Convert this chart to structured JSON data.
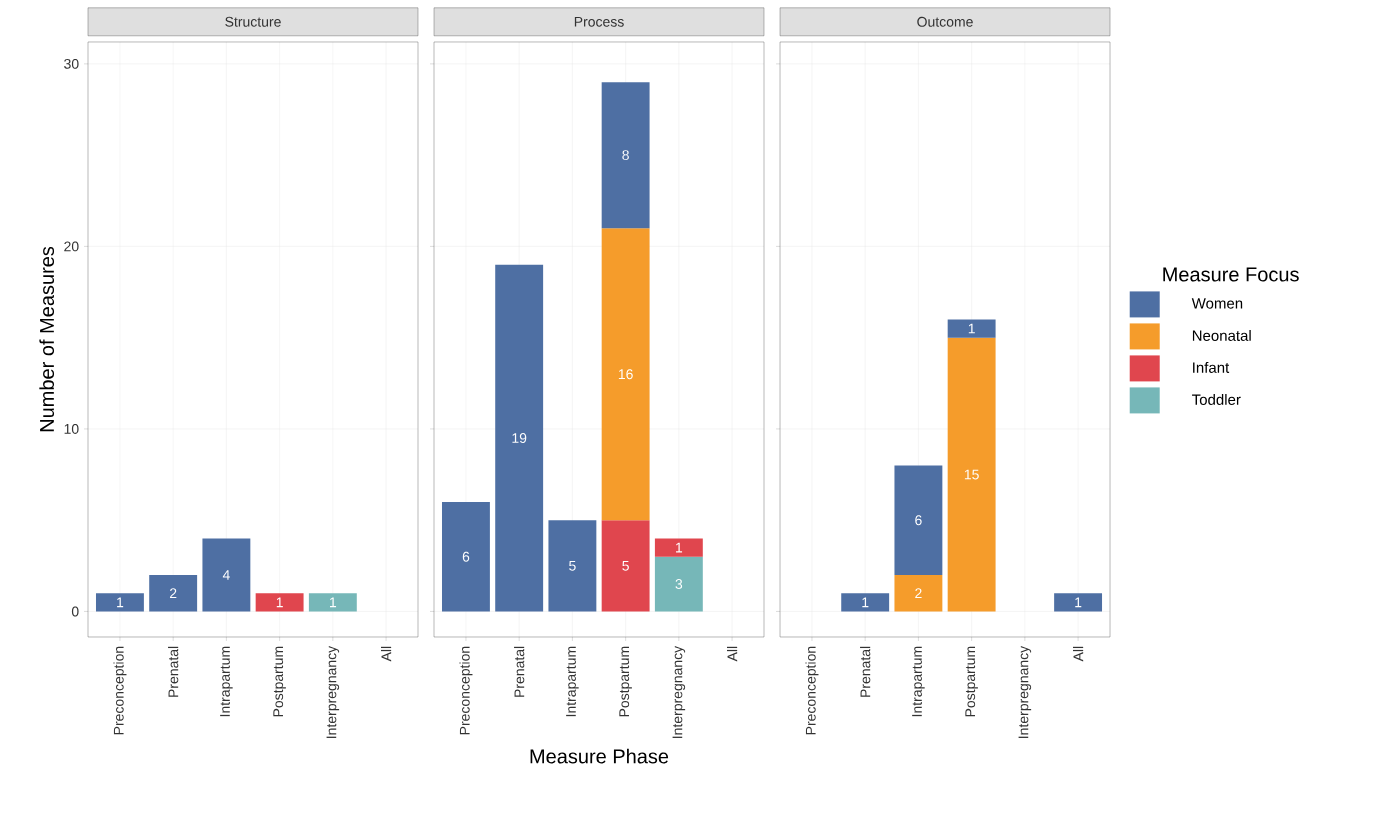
{
  "chart_data": [
    {
      "type": "bar",
      "title": "Structure",
      "ylabel": "Number of Measures",
      "stacked": true,
      "data_labels": true,
      "grid": true,
      "categories": [
        "Preconception",
        "Prenatal",
        "Intrapartum",
        "Postpartum",
        "Interpregnancy",
        "All"
      ],
      "ylim": [
        -1.4,
        31.2
      ],
      "yticks": [
        0,
        10,
        20,
        30
      ],
      "series": [
        {
          "color": "#76b7b8",
          "values": [
            null,
            null,
            null,
            null,
            1,
            null
          ]
        },
        {
          "color": "#e0464e",
          "values": [
            null,
            null,
            null,
            1,
            null,
            null
          ]
        },
        {
          "color": "#4e6fa3",
          "values": [
            1,
            2,
            4,
            null,
            null,
            null
          ]
        }
      ]
    },
    {
      "type": "bar",
      "title": "Process",
      "xlabel": "Measure Phase",
      "stacked": true,
      "data_labels": true,
      "grid": true,
      "tick_labels": "x",
      "categories": [
        "Preconception",
        "Prenatal",
        "Intrapartum",
        "Postpartum",
        "Interpregnancy",
        "All"
      ],
      "ylim": [
        -1.4,
        31.2
      ],
      "yticks": [
        0,
        10,
        20,
        30
      ],
      "series": [
        {
          "color": "#76b7b8",
          "values": [
            null,
            null,
            null,
            null,
            3,
            null
          ]
        },
        {
          "color": "#e0464e",
          "values": [
            null,
            null,
            null,
            5,
            1,
            null
          ]
        },
        {
          "color": "#f59c2b",
          "values": [
            null,
            null,
            null,
            16,
            null,
            null
          ]
        },
        {
          "color": "#4e6fa3",
          "values": [
            6,
            19,
            5,
            8,
            null,
            null
          ]
        }
      ]
    },
    {
      "type": "bar",
      "title": "Outcome",
      "legend_title": "Measure Focus",
      "legend": "right",
      "stacked": true,
      "data_labels": true,
      "grid": true,
      "tick_labels": "x",
      "categories": [
        "Preconception",
        "Prenatal",
        "Intrapartum",
        "Postpartum",
        "Interpregnancy",
        "All"
      ],
      "ylim": [
        -1.4,
        31.2
      ],
      "yticks": [
        0,
        10,
        20,
        30
      ],
      "series": [
        {
          "name": "Toddler",
          "color": "#76b7b8",
          "values": [
            null,
            null,
            null,
            null,
            null,
            null
          ]
        },
        {
          "name": "Infant",
          "color": "#e0464e",
          "values": [
            null,
            null,
            null,
            null,
            null,
            null
          ]
        },
        {
          "name": "Neonatal",
          "color": "#f59c2b",
          "values": [
            null,
            null,
            2,
            15,
            null,
            null
          ]
        },
        {
          "name": "Women",
          "color": "#4e6fa3",
          "values": [
            null,
            1,
            6,
            1,
            null,
            1
          ]
        }
      ]
    }
  ]
}
